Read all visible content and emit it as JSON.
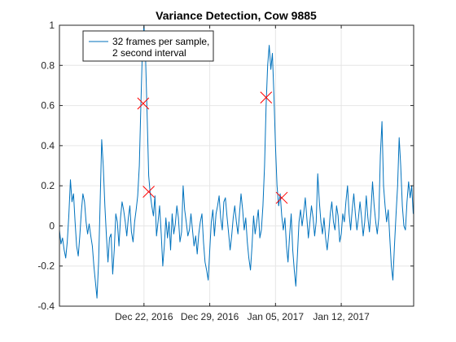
{
  "chart_data": {
    "type": "line",
    "title": "Variance Detection, Cow 9885",
    "xlabel": "",
    "ylabel": "",
    "x_axis": "date",
    "xlim": [
      "2016-12-13T00:00",
      "2017-01-19T17:00"
    ],
    "ylim": [
      -0.4,
      1.0
    ],
    "x_ticks": [
      "2016-12-22",
      "2016-12-29",
      "2017-01-05",
      "2017-01-12"
    ],
    "x_tick_labels": [
      "Dec 22, 2016",
      "Dec 29, 2016",
      "Jan 05, 2017",
      "Jan 12, 2017"
    ],
    "y_ticks": [
      -0.4,
      -0.2,
      0,
      0.2,
      0.4,
      0.6,
      0.8,
      1
    ],
    "y_tick_labels": [
      "-0.4",
      "-0.2",
      "0",
      "0.2",
      "0.4",
      "0.6",
      "0.8",
      "1"
    ],
    "grid": true,
    "legend": {
      "placement": "top-left",
      "entries": [
        "32 frames per sample,",
        "2  second interval"
      ]
    },
    "colors": {
      "series": "#0072bd",
      "markers": "#ff0000",
      "grid": "#e6e6e6",
      "axis": "#262626"
    },
    "series": [
      {
        "name": "32 frames per sample, 2  second interval",
        "points": [
          [
            "2016-12-13T00:00",
            -0.02
          ],
          [
            "2016-12-13T04:00",
            -0.09
          ],
          [
            "2016-12-13T08:00",
            -0.06
          ],
          [
            "2016-12-13T12:00",
            -0.12
          ],
          [
            "2016-12-13T16:00",
            -0.16
          ],
          [
            "2016-12-13T20:00",
            -0.08
          ],
          [
            "2016-12-14T00:00",
            0.05
          ],
          [
            "2016-12-14T04:00",
            0.23
          ],
          [
            "2016-12-14T08:00",
            0.12
          ],
          [
            "2016-12-14T12:00",
            0.16
          ],
          [
            "2016-12-14T16:00",
            0.02
          ],
          [
            "2016-12-14T20:00",
            -0.1
          ],
          [
            "2016-12-15T00:00",
            -0.15
          ],
          [
            "2016-12-15T04:00",
            -0.05
          ],
          [
            "2016-12-15T08:00",
            0.07
          ],
          [
            "2016-12-15T12:00",
            0.16
          ],
          [
            "2016-12-15T16:00",
            0.12
          ],
          [
            "2016-12-15T20:00",
            0.02
          ],
          [
            "2016-12-16T00:00",
            -0.04
          ],
          [
            "2016-12-16T04:00",
            0.01
          ],
          [
            "2016-12-16T08:00",
            -0.05
          ],
          [
            "2016-12-16T12:00",
            -0.1
          ],
          [
            "2016-12-16T16:00",
            -0.2
          ],
          [
            "2016-12-16T20:00",
            -0.28
          ],
          [
            "2016-12-17T00:00",
            -0.36
          ],
          [
            "2016-12-17T04:00",
            -0.18
          ],
          [
            "2016-12-17T08:00",
            0.12
          ],
          [
            "2016-12-17T12:00",
            0.43
          ],
          [
            "2016-12-17T16:00",
            0.3
          ],
          [
            "2016-12-17T20:00",
            0.1
          ],
          [
            "2016-12-18T00:00",
            -0.05
          ],
          [
            "2016-12-18T04:00",
            -0.18
          ],
          [
            "2016-12-18T08:00",
            -0.06
          ],
          [
            "2016-12-18T12:00",
            -0.04
          ],
          [
            "2016-12-18T16:00",
            -0.24
          ],
          [
            "2016-12-18T20:00",
            -0.12
          ],
          [
            "2016-12-19T00:00",
            0.06
          ],
          [
            "2016-12-19T04:00",
            0.02
          ],
          [
            "2016-12-19T08:00",
            -0.1
          ],
          [
            "2016-12-19T12:00",
            0.04
          ],
          [
            "2016-12-19T16:00",
            0.12
          ],
          [
            "2016-12-19T20:00",
            0.08
          ],
          [
            "2016-12-20T00:00",
            0.02
          ],
          [
            "2016-12-20T04:00",
            -0.05
          ],
          [
            "2016-12-20T08:00",
            0.04
          ],
          [
            "2016-12-20T12:00",
            0.1
          ],
          [
            "2016-12-20T16:00",
            -0.03
          ],
          [
            "2016-12-20T20:00",
            -0.08
          ],
          [
            "2016-12-21T00:00",
            0.02
          ],
          [
            "2016-12-21T04:00",
            0.08
          ],
          [
            "2016-12-21T08:00",
            0.15
          ],
          [
            "2016-12-21T12:00",
            0.3
          ],
          [
            "2016-12-21T16:00",
            0.6
          ],
          [
            "2016-12-21T20:00",
            0.88
          ],
          [
            "2016-12-22T00:00",
            1.0
          ],
          [
            "2016-12-22T04:00",
            0.85
          ],
          [
            "2016-12-22T08:00",
            0.55
          ],
          [
            "2016-12-22T12:00",
            0.25
          ],
          [
            "2016-12-22T16:00",
            0.16
          ],
          [
            "2016-12-22T20:00",
            0.1
          ],
          [
            "2016-12-23T00:00",
            0.05
          ],
          [
            "2016-12-23T04:00",
            0.15
          ],
          [
            "2016-12-23T08:00",
            -0.05
          ],
          [
            "2016-12-23T12:00",
            0.02
          ],
          [
            "2016-12-23T16:00",
            0.1
          ],
          [
            "2016-12-23T20:00",
            -0.04
          ],
          [
            "2016-12-24T00:00",
            -0.2
          ],
          [
            "2016-12-24T04:00",
            -0.1
          ],
          [
            "2016-12-24T08:00",
            0.04
          ],
          [
            "2016-12-24T12:00",
            -0.06
          ],
          [
            "2016-12-24T16:00",
            0.02
          ],
          [
            "2016-12-24T20:00",
            -0.12
          ],
          [
            "2016-12-25T00:00",
            0.06
          ],
          [
            "2016-12-25T04:00",
            -0.04
          ],
          [
            "2016-12-25T08:00",
            0.01
          ],
          [
            "2016-12-25T12:00",
            0.1
          ],
          [
            "2016-12-25T16:00",
            0.04
          ],
          [
            "2016-12-25T20:00",
            -0.08
          ],
          [
            "2016-12-26T00:00",
            -0.03
          ],
          [
            "2016-12-26T04:00",
            0.2
          ],
          [
            "2016-12-26T08:00",
            0.08
          ],
          [
            "2016-12-26T12:00",
            0.02
          ],
          [
            "2016-12-26T16:00",
            -0.05
          ],
          [
            "2016-12-26T20:00",
            -0.02
          ],
          [
            "2016-12-27T00:00",
            0.06
          ],
          [
            "2016-12-27T04:00",
            -0.02
          ],
          [
            "2016-12-27T08:00",
            -0.1
          ],
          [
            "2016-12-27T12:00",
            -0.05
          ],
          [
            "2016-12-27T16:00",
            -0.14
          ],
          [
            "2016-12-27T20:00",
            -0.04
          ],
          [
            "2016-12-28T00:00",
            0.02
          ],
          [
            "2016-12-28T04:00",
            0.06
          ],
          [
            "2016-12-28T08:00",
            -0.08
          ],
          [
            "2016-12-28T12:00",
            -0.18
          ],
          [
            "2016-12-28T16:00",
            -0.22
          ],
          [
            "2016-12-28T20:00",
            -0.27
          ],
          [
            "2016-12-29T00:00",
            -0.12
          ],
          [
            "2016-12-29T04:00",
            0.02
          ],
          [
            "2016-12-29T08:00",
            0.08
          ],
          [
            "2016-12-29T12:00",
            -0.05
          ],
          [
            "2016-12-29T16:00",
            0.06
          ],
          [
            "2016-12-29T20:00",
            0.1
          ],
          [
            "2016-12-30T00:00",
            0.15
          ],
          [
            "2016-12-30T04:00",
            0.04
          ],
          [
            "2016-12-30T08:00",
            -0.02
          ],
          [
            "2016-12-30T12:00",
            0.12
          ],
          [
            "2016-12-30T16:00",
            0.14
          ],
          [
            "2016-12-30T20:00",
            0.05
          ],
          [
            "2016-12-31T00:00",
            -0.03
          ],
          [
            "2016-12-31T04:00",
            -0.12
          ],
          [
            "2016-12-31T08:00",
            -0.05
          ],
          [
            "2016-12-31T12:00",
            0.04
          ],
          [
            "2016-12-31T16:00",
            0.1
          ],
          [
            "2016-12-31T20:00",
            0.02
          ],
          [
            "2017-01-01T00:00",
            -0.04
          ],
          [
            "2017-01-01T04:00",
            0.06
          ],
          [
            "2017-01-01T08:00",
            0.16
          ],
          [
            "2017-01-01T12:00",
            0.08
          ],
          [
            "2017-01-01T16:00",
            -0.02
          ],
          [
            "2017-01-01T20:00",
            0.04
          ],
          [
            "2017-01-02T00:00",
            -0.08
          ],
          [
            "2017-01-02T04:00",
            -0.16
          ],
          [
            "2017-01-02T08:00",
            -0.22
          ],
          [
            "2017-01-02T12:00",
            -0.1
          ],
          [
            "2017-01-02T16:00",
            0.05
          ],
          [
            "2017-01-02T20:00",
            -0.04
          ],
          [
            "2017-01-03T00:00",
            0.02
          ],
          [
            "2017-01-03T04:00",
            0.08
          ],
          [
            "2017-01-03T08:00",
            -0.06
          ],
          [
            "2017-01-03T12:00",
            -0.02
          ],
          [
            "2017-01-03T16:00",
            0.1
          ],
          [
            "2017-01-03T20:00",
            0.3
          ],
          [
            "2017-01-04T00:00",
            0.6
          ],
          [
            "2017-01-04T04:00",
            0.8
          ],
          [
            "2017-01-04T08:00",
            0.9
          ],
          [
            "2017-01-04T12:00",
            0.78
          ],
          [
            "2017-01-04T16:00",
            0.86
          ],
          [
            "2017-01-04T20:00",
            0.65
          ],
          [
            "2017-01-05T00:00",
            0.4
          ],
          [
            "2017-01-05T04:00",
            0.2
          ],
          [
            "2017-01-05T08:00",
            0.1
          ],
          [
            "2017-01-05T12:00",
            0.16
          ],
          [
            "2017-01-05T16:00",
            0.05
          ],
          [
            "2017-01-05T20:00",
            -0.02
          ],
          [
            "2017-01-06T00:00",
            0.04
          ],
          [
            "2017-01-06T04:00",
            -0.1
          ],
          [
            "2017-01-06T08:00",
            -0.18
          ],
          [
            "2017-01-06T12:00",
            -0.05
          ],
          [
            "2017-01-06T16:00",
            0.06
          ],
          [
            "2017-01-06T20:00",
            -0.12
          ],
          [
            "2017-01-07T00:00",
            -0.22
          ],
          [
            "2017-01-07T04:00",
            -0.3
          ],
          [
            "2017-01-07T08:00",
            -0.15
          ],
          [
            "2017-01-07T12:00",
            0.02
          ],
          [
            "2017-01-07T16:00",
            0.08
          ],
          [
            "2017-01-07T20:00",
            0.0
          ],
          [
            "2017-01-08T00:00",
            0.06
          ],
          [
            "2017-01-08T04:00",
            0.14
          ],
          [
            "2017-01-08T08:00",
            0.04
          ],
          [
            "2017-01-08T12:00",
            -0.06
          ],
          [
            "2017-01-08T16:00",
            0.02
          ],
          [
            "2017-01-08T20:00",
            0.1
          ],
          [
            "2017-01-09T00:00",
            0.04
          ],
          [
            "2017-01-09T04:00",
            -0.05
          ],
          [
            "2017-01-09T08:00",
            0.02
          ],
          [
            "2017-01-09T12:00",
            0.26
          ],
          [
            "2017-01-09T16:00",
            0.12
          ],
          [
            "2017-01-09T20:00",
            0.02
          ],
          [
            "2017-01-10T00:00",
            -0.04
          ],
          [
            "2017-01-10T04:00",
            0.04
          ],
          [
            "2017-01-10T08:00",
            -0.06
          ],
          [
            "2017-01-10T12:00",
            -0.12
          ],
          [
            "2017-01-10T16:00",
            -0.04
          ],
          [
            "2017-01-10T20:00",
            0.06
          ],
          [
            "2017-01-11T00:00",
            0.12
          ],
          [
            "2017-01-11T04:00",
            0.02
          ],
          [
            "2017-01-11T08:00",
            -0.02
          ],
          [
            "2017-01-11T12:00",
            0.1
          ],
          [
            "2017-01-11T16:00",
            0.05
          ],
          [
            "2017-01-11T20:00",
            -0.08
          ],
          [
            "2017-01-12T00:00",
            -0.04
          ],
          [
            "2017-01-12T04:00",
            0.06
          ],
          [
            "2017-01-12T08:00",
            0.02
          ],
          [
            "2017-01-12T12:00",
            0.12
          ],
          [
            "2017-01-12T16:00",
            0.2
          ],
          [
            "2017-01-12T20:00",
            0.06
          ],
          [
            "2017-01-13T00:00",
            -0.02
          ],
          [
            "2017-01-13T04:00",
            0.08
          ],
          [
            "2017-01-13T08:00",
            0.16
          ],
          [
            "2017-01-13T12:00",
            0.06
          ],
          [
            "2017-01-13T16:00",
            -0.02
          ],
          [
            "2017-01-13T20:00",
            0.04
          ],
          [
            "2017-01-14T00:00",
            0.12
          ],
          [
            "2017-01-14T04:00",
            0.04
          ],
          [
            "2017-01-14T08:00",
            -0.05
          ],
          [
            "2017-01-14T12:00",
            0.02
          ],
          [
            "2017-01-14T16:00",
            0.15
          ],
          [
            "2017-01-14T20:00",
            0.04
          ],
          [
            "2017-01-15T00:00",
            -0.03
          ],
          [
            "2017-01-15T04:00",
            0.08
          ],
          [
            "2017-01-15T08:00",
            0.22
          ],
          [
            "2017-01-15T12:00",
            0.1
          ],
          [
            "2017-01-15T16:00",
            0.02
          ],
          [
            "2017-01-15T20:00",
            -0.04
          ],
          [
            "2017-01-16T00:00",
            0.04
          ],
          [
            "2017-01-16T04:00",
            0.35
          ],
          [
            "2017-01-16T08:00",
            0.52
          ],
          [
            "2017-01-16T12:00",
            0.2
          ],
          [
            "2017-01-16T16:00",
            0.1
          ],
          [
            "2017-01-16T20:00",
            0.02
          ],
          [
            "2017-01-17T00:00",
            0.08
          ],
          [
            "2017-01-17T04:00",
            -0.06
          ],
          [
            "2017-01-17T08:00",
            -0.2
          ],
          [
            "2017-01-17T12:00",
            -0.27
          ],
          [
            "2017-01-17T16:00",
            -0.1
          ],
          [
            "2017-01-17T20:00",
            0.06
          ],
          [
            "2017-01-18T00:00",
            0.2
          ],
          [
            "2017-01-18T04:00",
            0.44
          ],
          [
            "2017-01-18T08:00",
            0.3
          ],
          [
            "2017-01-18T12:00",
            0.1
          ],
          [
            "2017-01-18T16:00",
            0.0
          ],
          [
            "2017-01-18T20:00",
            -0.02
          ],
          [
            "2017-01-19T00:00",
            0.12
          ],
          [
            "2017-01-19T04:00",
            0.22
          ],
          [
            "2017-01-19T08:00",
            0.14
          ],
          [
            "2017-01-19T12:00",
            0.2
          ],
          [
            "2017-01-19T16:00",
            0.06
          ]
        ]
      }
    ],
    "markers": [
      [
        "2016-12-21T22:00",
        0.61
      ],
      [
        "2016-12-22T12:00",
        0.17
      ],
      [
        "2017-01-04T00:00",
        0.64
      ],
      [
        "2017-01-05T16:00",
        0.14
      ]
    ]
  }
}
